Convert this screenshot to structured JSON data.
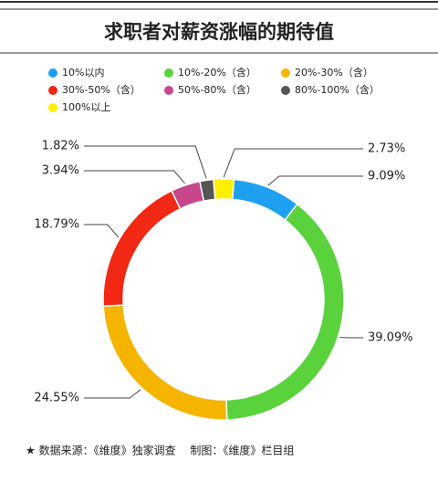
{
  "chart_data": {
    "type": "donut",
    "title": "求职者对薪资涨幅的期待值",
    "categories": [
      "10%以内",
      "10%-20%（含）",
      "20%-30%（含）",
      "30%-50%（含）",
      "50%-80%（含）",
      "80%-100%（含）",
      "100%以上"
    ],
    "values": [
      9.09,
      39.09,
      24.55,
      18.79,
      3.94,
      1.82,
      2.73
    ],
    "value_labels": [
      "9.09%",
      "39.09%",
      "24.55%",
      "18.79%",
      "3.94%",
      "1.82%",
      "2.73%"
    ],
    "colors": [
      "#1ea0f0",
      "#5ad23c",
      "#f5b400",
      "#f02814",
      "#c8468c",
      "#555555",
      "#fff000"
    ],
    "footnote": "★ 数据来源：《维度》独家调查　 制图：《维度》栏目组"
  }
}
